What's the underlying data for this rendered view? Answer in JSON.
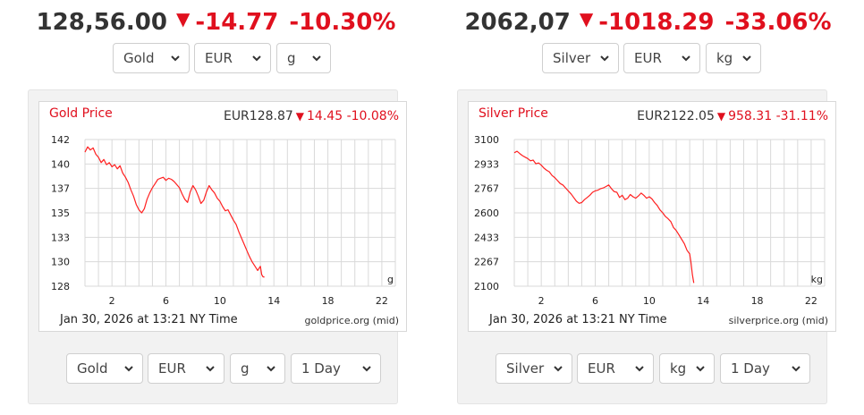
{
  "gold": {
    "headline": {
      "price": "128,56.00",
      "change": "-14.77",
      "percent": "-10.30%"
    },
    "top_selects": {
      "metal": "Gold",
      "currency": "EUR",
      "unit": "g"
    },
    "chart": {
      "title": "Gold Price",
      "quote": {
        "currency_price": "EUR128.87",
        "change": "14.45",
        "percent": "-10.08%"
      },
      "date_text": "Jan 30, 2026 at 13:21 NY Time",
      "source": "goldprice.org (mid)"
    },
    "bottom_selects": {
      "metal": "Gold",
      "currency": "EUR",
      "unit": "g",
      "period": "1 Day"
    }
  },
  "silver": {
    "headline": {
      "price": "2062,07",
      "change": "-1018.29",
      "percent": "-33.06%"
    },
    "top_selects": {
      "metal": "Silver",
      "currency": "EUR",
      "unit": "kg"
    },
    "chart": {
      "title": "Silver Price",
      "quote": {
        "currency_price": "EUR2122.05",
        "change": "958.31",
        "percent": "-31.11%"
      },
      "date_text": "Jan 30, 2026 at 13:21 NY Time",
      "source": "silverprice.org (mid)"
    },
    "bottom_selects": {
      "metal": "Silver",
      "currency": "EUR",
      "unit": "kg",
      "period": "1 Day"
    }
  },
  "colors": {
    "down": "#e0101e",
    "line": "#ff2020",
    "grid": "#d9d9d9"
  },
  "icons": {
    "price_down": "triangle-down",
    "select_caret": "chevron-down"
  },
  "chart_data": [
    {
      "type": "line",
      "title": "Gold Price",
      "unit_label": "g",
      "xlim": [
        0,
        23
      ],
      "ylim": [
        128,
        142
      ],
      "x_ticks": [
        "2",
        "6",
        "10",
        "14",
        "18",
        "22"
      ],
      "y_ticks": [
        "142",
        "140",
        "137",
        "135",
        "133",
        "130",
        "128"
      ],
      "grid": true,
      "series": [
        {
          "x": [
            0.0,
            0.2,
            0.4,
            0.6,
            0.8,
            1.0,
            1.2,
            1.4,
            1.6,
            1.8,
            2.0,
            2.2,
            2.4,
            2.6,
            2.8,
            3.0,
            3.2,
            3.4,
            3.6,
            3.8,
            4.0,
            4.2,
            4.4,
            4.6,
            4.8,
            5.0,
            5.2,
            5.4,
            5.6,
            5.8,
            6.0,
            6.2,
            6.4,
            6.6,
            6.8,
            7.0,
            7.2,
            7.4,
            7.6,
            7.8,
            8.0,
            8.2,
            8.4,
            8.6,
            8.8,
            9.0,
            9.2,
            9.4,
            9.6,
            9.8,
            10.0,
            10.2,
            10.4,
            10.6,
            10.8,
            11.0,
            11.2,
            11.4,
            11.6,
            11.8,
            12.0,
            12.2,
            12.4,
            12.6,
            12.8,
            13.0,
            13.1,
            13.2,
            13.3
          ],
          "y": [
            140.8,
            141.3,
            141.0,
            141.2,
            140.6,
            140.3,
            139.8,
            140.1,
            139.6,
            139.8,
            139.4,
            139.6,
            139.2,
            139.5,
            138.8,
            138.4,
            137.9,
            137.2,
            136.6,
            135.8,
            135.3,
            135.0,
            135.4,
            136.3,
            136.9,
            137.4,
            137.8,
            138.2,
            138.3,
            138.4,
            138.1,
            138.3,
            138.2,
            138.0,
            137.7,
            137.4,
            136.8,
            136.3,
            136.0,
            137.0,
            137.6,
            137.2,
            136.6,
            135.9,
            136.2,
            137.0,
            137.6,
            137.2,
            136.9,
            136.4,
            136.1,
            135.6,
            135.2,
            135.3,
            134.8,
            134.3,
            133.9,
            133.2,
            132.6,
            132.0,
            131.4,
            130.8,
            130.3,
            129.9,
            129.5,
            129.9,
            129.1,
            128.9,
            128.87
          ]
        }
      ]
    },
    {
      "type": "line",
      "title": "Silver Price",
      "unit_label": "kg",
      "xlim": [
        0,
        23
      ],
      "ylim": [
        2100,
        3100
      ],
      "x_ticks": [
        "2",
        "6",
        "10",
        "14",
        "18",
        "22"
      ],
      "y_ticks": [
        "3100",
        "2933",
        "2767",
        "2600",
        "2433",
        "2267",
        "2100"
      ],
      "grid": true,
      "series": [
        {
          "x": [
            0.0,
            0.2,
            0.4,
            0.6,
            0.8,
            1.0,
            1.2,
            1.4,
            1.6,
            1.8,
            2.0,
            2.2,
            2.4,
            2.6,
            2.8,
            3.0,
            3.2,
            3.4,
            3.6,
            3.8,
            4.0,
            4.2,
            4.4,
            4.6,
            4.8,
            5.0,
            5.2,
            5.4,
            5.6,
            5.8,
            6.0,
            6.2,
            6.4,
            6.6,
            6.8,
            7.0,
            7.2,
            7.4,
            7.6,
            7.8,
            8.0,
            8.2,
            8.4,
            8.6,
            8.8,
            9.0,
            9.2,
            9.4,
            9.6,
            9.8,
            10.0,
            10.2,
            10.4,
            10.6,
            10.8,
            11.0,
            11.2,
            11.4,
            11.6,
            11.8,
            12.0,
            12.2,
            12.4,
            12.6,
            12.8,
            13.0,
            13.1,
            13.2,
            13.3
          ],
          "y": [
            3010,
            3020,
            3005,
            2990,
            2980,
            2970,
            2955,
            2960,
            2935,
            2940,
            2925,
            2905,
            2890,
            2880,
            2855,
            2840,
            2820,
            2800,
            2790,
            2770,
            2750,
            2730,
            2705,
            2680,
            2665,
            2670,
            2690,
            2705,
            2720,
            2740,
            2750,
            2755,
            2765,
            2770,
            2780,
            2790,
            2765,
            2745,
            2740,
            2705,
            2720,
            2690,
            2700,
            2725,
            2710,
            2700,
            2715,
            2735,
            2720,
            2700,
            2710,
            2695,
            2670,
            2650,
            2620,
            2600,
            2575,
            2560,
            2540,
            2500,
            2480,
            2450,
            2420,
            2390,
            2345,
            2320,
            2260,
            2180,
            2122
          ]
        }
      ]
    }
  ]
}
